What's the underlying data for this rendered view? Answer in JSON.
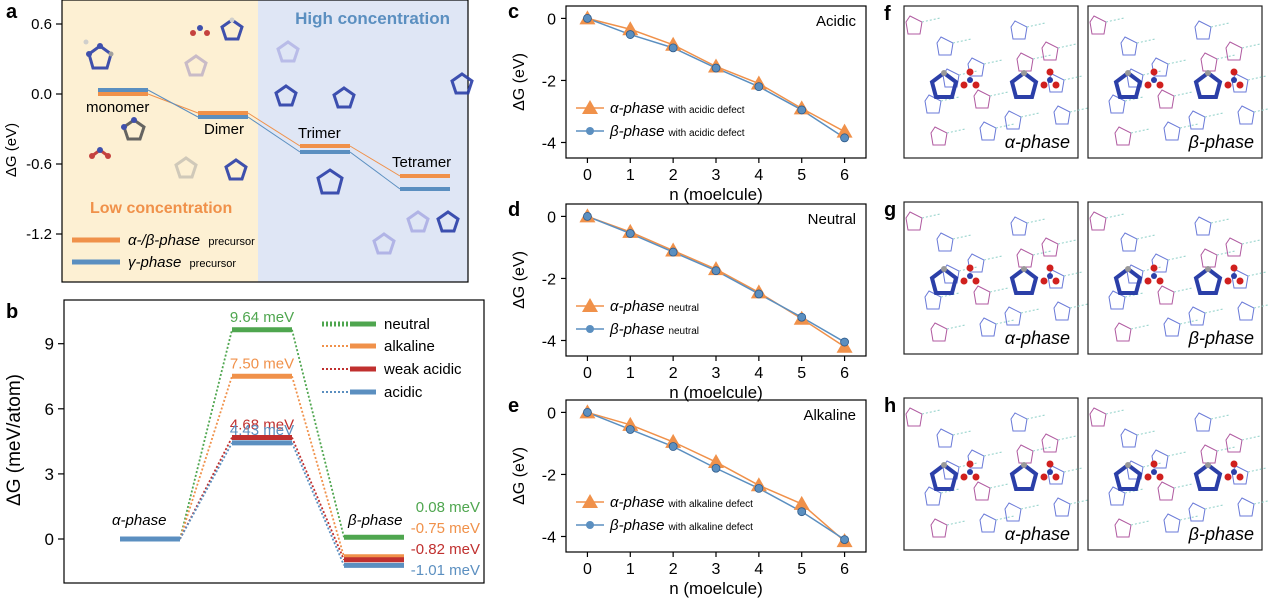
{
  "panels": {
    "a": {
      "label": "a",
      "ylabel": "ΔG (eV)",
      "yticks": [
        "0.6",
        "0.0",
        "-0.6",
        "-1.2"
      ],
      "region_low": "Low concentration",
      "region_high": "High concentration",
      "stages": [
        "monomer",
        "Dimer",
        "Trimer",
        "Tetramer"
      ],
      "legend_alpha_beta": "α-/β-phase",
      "legend_gamma": "γ-phase",
      "legend_suffix": "precursor",
      "colors": {
        "orange": "#f0914a",
        "blue": "#5b8fc0",
        "low_bg": "#fdf0d3",
        "high_bg": "#dfe6f5"
      }
    },
    "b": {
      "label": "b",
      "ylabel": "ΔG (meV/atom)",
      "yticks": [
        "9",
        "6",
        "3",
        "0"
      ],
      "alpha_label": "α-phase",
      "beta_label": "β-phase",
      "barrier_labels": [
        "9.64 meV",
        "7.50 meV",
        "4.68 meV",
        "4.43 meV"
      ],
      "beta_labels": [
        "0.08 meV",
        "-0.75 meV",
        "-0.82 meV",
        "-1.01 meV"
      ],
      "legend": [
        "neutral",
        "alkaline",
        "weak acidic",
        "acidic"
      ],
      "colors": [
        "#4fa64f",
        "#f0914a",
        "#c0302f",
        "#5b8fc0"
      ]
    },
    "c": {
      "label": "c",
      "condition": "Acidic",
      "alpha_legend": "α-phase",
      "alpha_suffix": "with acidic defect",
      "beta_legend": "β-phase",
      "beta_suffix": "with acidic defect"
    },
    "d": {
      "label": "d",
      "condition": "Neutral",
      "alpha_legend": "α-phase",
      "alpha_suffix": "neutral",
      "beta_legend": "β-phase",
      "beta_suffix": "neutral"
    },
    "e": {
      "label": "e",
      "condition": "Alkaline",
      "alpha_legend": "α-phase",
      "alpha_suffix": "with alkaline defect",
      "beta_legend": "β-phase",
      "beta_suffix": "with alkaline defect"
    },
    "cde_common": {
      "ylabel": "ΔG (eV)",
      "xlabel": "n (moelcule)",
      "yticks": [
        "0",
        "-2",
        "-4"
      ],
      "xticks": [
        "0",
        "1",
        "2",
        "3",
        "4",
        "5",
        "6"
      ]
    },
    "f": {
      "label": "f",
      "left": "α-phase",
      "right": "β-phase"
    },
    "g": {
      "label": "g",
      "left": "α-phase",
      "right": "β-phase"
    },
    "h": {
      "label": "h",
      "left": "α-phase",
      "right": "β-phase"
    }
  },
  "chart_data": [
    {
      "panel": "b",
      "type": "line",
      "ylabel": "ΔG (meV/atom)",
      "ylim": [
        -1.5,
        11
      ],
      "series": [
        {
          "name": "neutral",
          "color": "#4fa64f",
          "alpha": 0,
          "barrier": 9.64,
          "beta": 0.08
        },
        {
          "name": "alkaline",
          "color": "#f0914a",
          "alpha": 0,
          "barrier": 7.5,
          "beta": -0.75
        },
        {
          "name": "weak acidic",
          "color": "#c0302f",
          "alpha": 0,
          "barrier": 4.68,
          "beta": -0.82
        },
        {
          "name": "acidic",
          "color": "#5b8fc0",
          "alpha": 0,
          "barrier": 4.43,
          "beta": -1.01
        }
      ]
    },
    {
      "panel": "c",
      "type": "line",
      "xlabel": "n (moelcule)",
      "ylabel": "ΔG (eV)",
      "xlim": [
        -0.5,
        6.5
      ],
      "ylim": [
        -4.5,
        0.4
      ],
      "x": [
        0,
        1,
        2,
        3,
        4,
        5,
        6
      ],
      "series": [
        {
          "name": "α-phase with acidic defect",
          "values": [
            0,
            -0.35,
            -0.85,
            -1.55,
            -2.1,
            -2.9,
            -3.65
          ]
        },
        {
          "name": "β-phase with acidic defect",
          "values": [
            0,
            -0.52,
            -0.95,
            -1.6,
            -2.2,
            -2.95,
            -3.85
          ]
        }
      ]
    },
    {
      "panel": "d",
      "type": "line",
      "xlabel": "n (moelcule)",
      "ylabel": "ΔG (eV)",
      "xlim": [
        -0.5,
        6.5
      ],
      "ylim": [
        -4.5,
        0.4
      ],
      "x": [
        0,
        1,
        2,
        3,
        4,
        5,
        6
      ],
      "series": [
        {
          "name": "α-phase neutral",
          "values": [
            0,
            -0.5,
            -1.1,
            -1.7,
            -2.45,
            -3.3,
            -4.2
          ]
        },
        {
          "name": "β-phase neutral",
          "values": [
            0,
            -0.55,
            -1.15,
            -1.75,
            -2.5,
            -3.25,
            -4.05
          ]
        }
      ]
    },
    {
      "panel": "e",
      "type": "line",
      "xlabel": "n (moelcule)",
      "ylabel": "ΔG (eV)",
      "xlim": [
        -0.5,
        6.5
      ],
      "ylim": [
        -4.5,
        0.4
      ],
      "x": [
        0,
        1,
        2,
        3,
        4,
        5,
        6
      ],
      "series": [
        {
          "name": "α-phase with alkaline defect",
          "values": [
            0,
            -0.4,
            -0.95,
            -1.6,
            -2.35,
            -2.95,
            -4.15
          ]
        },
        {
          "name": "β-phase with alkaline defect",
          "values": [
            0,
            -0.55,
            -1.1,
            -1.8,
            -2.45,
            -3.2,
            -4.1
          ]
        }
      ]
    }
  ]
}
